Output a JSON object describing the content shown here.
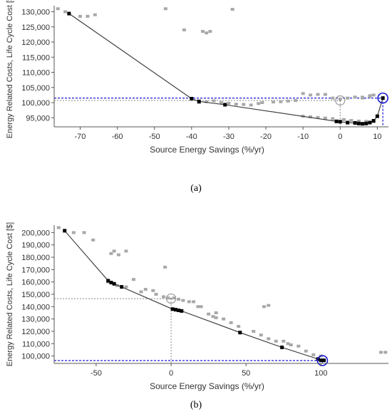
{
  "chart_data": [
    {
      "type": "scatter",
      "caption": "(a)",
      "xlabel": "Source Energy Savings (%/yr)",
      "ylabel": "Energy Related Costs, Life Cycle Cost [$]",
      "xlim": [
        -77,
        13
      ],
      "ylim": [
        92000,
        132000
      ],
      "x_ticks": [
        -70,
        -60,
        -50,
        -40,
        -30,
        -20,
        -10,
        0,
        10
      ],
      "y_ticks": [
        95000,
        100000,
        105000,
        110000,
        115000,
        120000,
        125000,
        130000
      ],
      "x_tick_labels": [
        "-70",
        "-60",
        "-50",
        "-40",
        "-30",
        "-20",
        "-10",
        "0",
        "10"
      ],
      "y_tick_labels": [
        "95,000",
        "100,000",
        "105,000",
        "110,000",
        "115,000",
        "120,000",
        "125,000",
        "130,000"
      ],
      "series": [
        {
          "role": "other-iterations",
          "color": "#a8a8a8",
          "x": [
            -76,
            -74,
            -70,
            -68,
            -66,
            -47,
            -42,
            -37,
            -36,
            -35,
            -29,
            -38,
            -36,
            -34,
            -32,
            -30,
            -28,
            -26,
            -24,
            -22,
            -21,
            -18,
            -16,
            -14,
            -12,
            -10,
            -8,
            -6,
            -4,
            -2,
            0,
            2,
            4,
            6,
            8,
            -10,
            -8,
            -6,
            -4,
            -2,
            1,
            3,
            5,
            7,
            9,
            9,
            8,
            6,
            4
          ],
          "y": [
            131000,
            130000,
            128500,
            128500,
            129000,
            131000,
            124000,
            123500,
            123000,
            123500,
            130800,
            100000,
            100300,
            100600,
            100000,
            99800,
            99500,
            99400,
            99200,
            99700,
            100000,
            100200,
            100300,
            100500,
            100700,
            103000,
            102500,
            102700,
            102700,
            101500,
            101200,
            101500,
            101800,
            101800,
            102300,
            95500,
            95300,
            95100,
            94900,
            94700,
            94400,
            94100,
            93900,
            93800,
            93700,
            102500,
            102000,
            101500,
            101800
          ]
        },
        {
          "role": "optimal-path",
          "color": "#000000",
          "x": [
            -73,
            -40,
            -38,
            -31,
            -1,
            0,
            2,
            4,
            5,
            6,
            7,
            8,
            9,
            10,
            11.5
          ],
          "y": [
            129400,
            101300,
            100400,
            99300,
            93800,
            93700,
            93400,
            93300,
            93100,
            93000,
            93100,
            93400,
            94000,
            95500,
            101500
          ]
        }
      ],
      "baseline": {
        "x": 0,
        "y": 100700
      },
      "selected": {
        "x": 11.5,
        "y": 101500
      },
      "colors": {
        "gridline_gray": "#888888",
        "selected_blue": "#1a1ad6",
        "axis": "#555555"
      }
    },
    {
      "type": "scatter",
      "caption": "(b)",
      "xlabel": "Source Energy Savings (%/yr)",
      "ylabel": "Energy Related Costs, Life Cycle Cost [$]",
      "xlim": [
        -78,
        145
      ],
      "ylim": [
        94000,
        206000
      ],
      "x_ticks": [
        -50,
        0,
        50,
        100
      ],
      "y_ticks": [
        100000,
        110000,
        120000,
        130000,
        140000,
        150000,
        160000,
        170000,
        180000,
        190000,
        200000
      ],
      "x_tick_labels": [
        "-50",
        "0",
        "50",
        "100"
      ],
      "y_tick_labels": [
        "100,000",
        "110,000",
        "120,000",
        "130,000",
        "140,000",
        "150,000",
        "160,000",
        "170,000",
        "180,000",
        "190,000",
        "200,000"
      ],
      "series": [
        {
          "role": "other-iterations",
          "color": "#a8a8a8",
          "x": [
            -75,
            -65,
            -58,
            -52,
            -40,
            -38,
            -35,
            -30,
            -25,
            -17,
            -12,
            -10,
            -5,
            -2,
            2,
            5,
            8,
            12,
            15,
            20,
            25,
            28,
            30,
            35,
            40,
            45,
            55,
            60,
            65,
            70,
            75,
            78,
            80,
            85,
            90,
            95,
            100,
            140,
            143,
            -42,
            -36,
            -30,
            18,
            30,
            62,
            65,
            -4,
            -20
          ],
          "y": [
            204000,
            200000,
            200000,
            194000,
            183000,
            185000,
            182000,
            185000,
            162000,
            154000,
            153000,
            150000,
            148000,
            147000,
            147000,
            146000,
            145000,
            144000,
            144000,
            140000,
            134000,
            132000,
            131000,
            130000,
            127000,
            124000,
            120000,
            117000,
            114000,
            112000,
            112000,
            110000,
            109000,
            108000,
            104000,
            101000,
            100000,
            103000,
            103000,
            160000,
            157000,
            156000,
            140000,
            135000,
            140000,
            141000,
            172000,
            152000
          ]
        },
        {
          "role": "optimal-path",
          "color": "#000000",
          "x": [
            -71,
            -42,
            -40,
            -38,
            -33,
            1,
            3,
            5,
            7,
            46,
            74,
            98,
            100,
            102
          ],
          "y": [
            201500,
            161000,
            159500,
            158500,
            156000,
            138000,
            137500,
            137000,
            136500,
            119000,
            107000,
            97500,
            96500,
            96500
          ]
        }
      ],
      "baseline": {
        "x": 0,
        "y": 146500
      },
      "selected": {
        "x": 101,
        "y": 96300
      },
      "colors": {
        "gridline_gray": "#888888",
        "selected_blue": "#1a1ad6",
        "axis": "#555555"
      }
    }
  ]
}
